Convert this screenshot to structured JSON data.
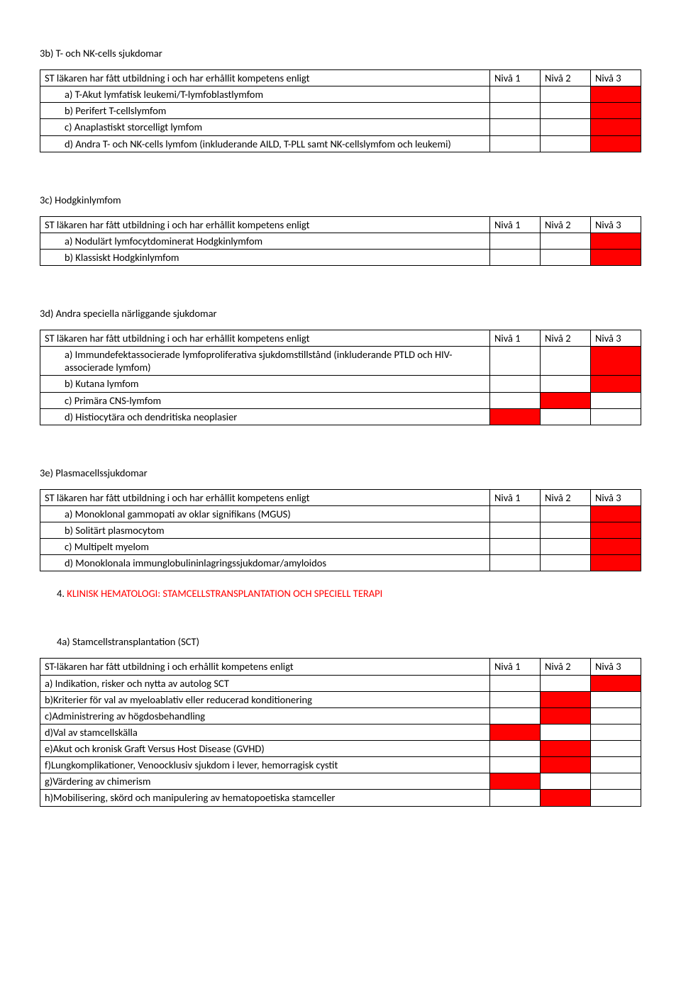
{
  "colors": {
    "red": "#ff0000",
    "border": "#000000",
    "text": "#000000",
    "bg": "#ffffff"
  },
  "niv": {
    "n1": "Nivå 1",
    "n2": "Nivå 2",
    "n3": "Nivå 3"
  },
  "header_text": "ST läkaren har fått utbildning i och har erhållit kompetens enligt",
  "header_text_hyphen": "ST-läkaren har fått utbildning i och erhållit kompetens enligt",
  "s3b": {
    "title": "3b) T- och NK-cells sjukdomar",
    "rows": [
      {
        "label": "a)   T-Akut lymfatisk leukemi/T-lymfoblastlymfom",
        "red": [
          3
        ]
      },
      {
        "label": "b)   Perifert T-cellslymfom",
        "red": [
          3
        ]
      },
      {
        "label": "c)   Anaplastiskt storcelligt lymfom",
        "red": [
          3
        ]
      },
      {
        "label": "d)   Andra T- och NK-cells lymfom (inkluderande AILD, T-PLL samt NK-cellslymfom och leukemi)",
        "red": [
          3
        ]
      }
    ]
  },
  "s3c": {
    "title": "3c) Hodgkinlymfom",
    "rows": [
      {
        "label": "a)   Nodulärt lymfocytdominerat Hodgkinlymfom",
        "red": [
          3
        ]
      },
      {
        "label": "b)   Klassiskt Hodgkinlymfom",
        "red": [
          3
        ]
      }
    ]
  },
  "s3d": {
    "title": "3d) Andra speciella närliggande sjukdomar",
    "rows": [
      {
        "label": "a)   Immundefektassocierade lymfoproliferativa sjukdomstillstånd (inkluderande PTLD och HIV-associerade lymfom)",
        "red": [
          3
        ]
      },
      {
        "label": "b)   Kutana lymfom",
        "red": [
          3
        ]
      },
      {
        "label": "c)   Primära CNS-lymfom",
        "red": [
          2
        ]
      },
      {
        "label": "d)   Histiocytära och dendritiska neoplasier",
        "red": [
          1
        ]
      }
    ]
  },
  "s3e": {
    "title": "3e) Plasmacellssjukdomar",
    "rows": [
      {
        "label": "a)   Monoklonal gammopati av oklar signifikans (MGUS)",
        "red": [
          3
        ]
      },
      {
        "label": "b)   Solitärt plasmocytom",
        "red": [
          3
        ]
      },
      {
        "label": "c)   Multipelt myelom",
        "red": [
          3
        ]
      },
      {
        "label": "d)   Monoklonala immunglobulininlagringssjukdomar/amyloidos",
        "red": [
          3
        ]
      }
    ]
  },
  "h4": {
    "num": "4.",
    "text": "KLINISK HEMATOLOGI: STAMCELLSTRANSPLANTATION OCH SPECIELL TERAPI"
  },
  "s4a": {
    "title": "4a) Stamcellstransplantation (SCT)",
    "rows": [
      {
        "label": "a) Indikation, risker och nytta av autolog SCT",
        "red": [
          3
        ]
      },
      {
        "label": "b)Kriterier för val av myeloablativ eller reducerad konditionering",
        "red": [
          2
        ]
      },
      {
        "label": "c)Administrering av högdosbehandling",
        "red": [
          2
        ]
      },
      {
        "label": "d)Val av stamcellskälla",
        "red": [
          1
        ]
      },
      {
        "label": "e)Akut och kronisk Graft Versus Host Disease (GVHD)",
        "red": [
          2
        ]
      },
      {
        "label": "f)Lungkomplikationer, Venoocklusiv sjukdom i lever, hemorragisk cystit",
        "red": [
          2
        ]
      },
      {
        "label": "g)Värdering av chimerism",
        "red": [
          1
        ]
      },
      {
        "label": "h)Mobilisering, skörd och manipulering av hematopoetiska stamceller",
        "red": [
          2
        ]
      }
    ]
  }
}
